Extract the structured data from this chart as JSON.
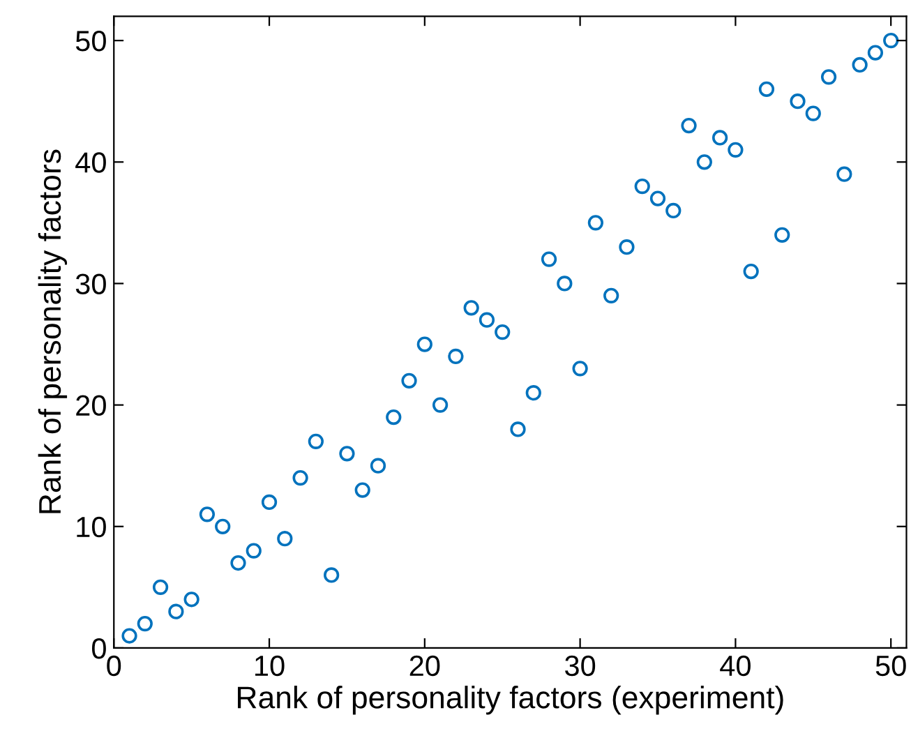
{
  "chart_data": {
    "type": "scatter",
    "xlabel": "Rank of personality factors (experiment)",
    "ylabel": "Rank of personality factors",
    "x": [
      1,
      2,
      3,
      4,
      5,
      6,
      7,
      8,
      9,
      10,
      11,
      12,
      13,
      14,
      15,
      16,
      17,
      18,
      19,
      20,
      21,
      22,
      23,
      24,
      25,
      26,
      27,
      28,
      29,
      30,
      31,
      32,
      33,
      34,
      35,
      36,
      37,
      38,
      39,
      40,
      41,
      42,
      43,
      44,
      45,
      46,
      47,
      48,
      49,
      50
    ],
    "series": [
      {
        "color": "#0072bd",
        "values": [
          1,
          2,
          5,
          3,
          4,
          11,
          10,
          7,
          8,
          12,
          9,
          14,
          17,
          6,
          16,
          13,
          15,
          19,
          22,
          25,
          20,
          24,
          28,
          27,
          26,
          18,
          21,
          32,
          30,
          23,
          35,
          29,
          33,
          38,
          37,
          36,
          43,
          40,
          42,
          41,
          31,
          46,
          34,
          45,
          44,
          47,
          39,
          48,
          49,
          50
        ]
      }
    ],
    "xlim": [
      0,
      51
    ],
    "ylim": [
      0,
      52
    ],
    "xticks": [
      0,
      10,
      20,
      30,
      40,
      50
    ],
    "yticks": [
      0,
      10,
      20,
      30,
      40,
      50
    ],
    "marker": "circle",
    "grid": false,
    "legend": false
  }
}
